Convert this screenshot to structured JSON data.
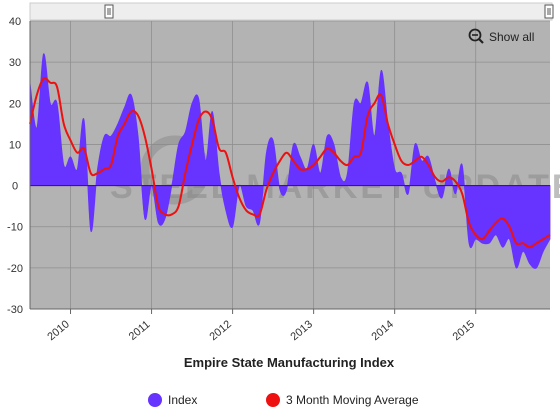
{
  "colors": {
    "plot_background": "#b3b3b3",
    "index_fill": "#6633ff",
    "moving_average": "#ee1111",
    "zero_line": "#5500aa"
  },
  "controls": {
    "show_all_label": "Show all",
    "zoom_icon": "zoom-out-icon"
  },
  "watermark": {
    "text": "STEEL MARKET UPDATE"
  },
  "chart_data": {
    "type": "area",
    "title": "Empire State Manufacturing Index",
    "xlabel": "",
    "ylabel": "",
    "ylim": [
      -30,
      40
    ],
    "y_ticks": [
      40,
      30,
      20,
      10,
      0,
      -10,
      -20,
      -30
    ],
    "x_ticks": [
      "2010",
      "2011",
      "2012",
      "2013",
      "2014",
      "2015"
    ],
    "x_range": [
      "2009-07",
      "2015-12"
    ],
    "grid": true,
    "legend_placement": "bottom",
    "series": [
      {
        "name": "Index",
        "kind": "area",
        "x": [
          "2009-07",
          "2009-08",
          "2009-09",
          "2009-10",
          "2009-11",
          "2009-12",
          "2010-01",
          "2010-02",
          "2010-03",
          "2010-04",
          "2010-05",
          "2010-06",
          "2010-07",
          "2010-08",
          "2010-09",
          "2010-10",
          "2010-11",
          "2010-12",
          "2011-01",
          "2011-02",
          "2011-03",
          "2011-04",
          "2011-05",
          "2011-06",
          "2011-07",
          "2011-08",
          "2011-09",
          "2011-10",
          "2011-11",
          "2011-12",
          "2012-01",
          "2012-02",
          "2012-03",
          "2012-04",
          "2012-05",
          "2012-06",
          "2012-07",
          "2012-08",
          "2012-09",
          "2012-10",
          "2012-11",
          "2012-12",
          "2013-01",
          "2013-02",
          "2013-03",
          "2013-04",
          "2013-05",
          "2013-06",
          "2013-07",
          "2013-08",
          "2013-09",
          "2013-10",
          "2013-11",
          "2013-12",
          "2014-01",
          "2014-02",
          "2014-03",
          "2014-04",
          "2014-05",
          "2014-06",
          "2014-07",
          "2014-08",
          "2014-09",
          "2014-10",
          "2014-11",
          "2014-12",
          "2015-01",
          "2015-02",
          "2015-03",
          "2015-04",
          "2015-05",
          "2015-06",
          "2015-07",
          "2015-08",
          "2015-09",
          "2015-10",
          "2015-11",
          "2015-12"
        ],
        "values": [
          25,
          14,
          32,
          20,
          20,
          5,
          7,
          4,
          16,
          -11,
          4,
          12,
          12,
          15,
          19,
          22,
          12,
          -8,
          0,
          -9,
          -8,
          0,
          10,
          13,
          20,
          21,
          6,
          18,
          3,
          -6,
          -10,
          0,
          -5,
          -6,
          -9,
          8,
          11,
          -1,
          -1,
          10,
          7,
          4,
          10,
          3,
          12,
          10,
          2,
          3,
          20,
          20,
          25,
          12,
          28,
          15,
          4,
          3,
          -2,
          10,
          6,
          7,
          1,
          -3,
          4,
          -2,
          5,
          -14,
          -13,
          -14,
          -14,
          -12,
          -15,
          -13,
          -20,
          -16,
          -19,
          -20,
          -16,
          -13
        ]
      },
      {
        "name": "3 Month Moving Average",
        "kind": "line",
        "x": [
          "2009-07",
          "2009-08",
          "2009-09",
          "2009-10",
          "2009-11",
          "2009-12",
          "2010-01",
          "2010-02",
          "2010-03",
          "2010-04",
          "2010-05",
          "2010-06",
          "2010-07",
          "2010-08",
          "2010-09",
          "2010-10",
          "2010-11",
          "2010-12",
          "2011-01",
          "2011-02",
          "2011-03",
          "2011-04",
          "2011-05",
          "2011-06",
          "2011-07",
          "2011-08",
          "2011-09",
          "2011-10",
          "2011-11",
          "2011-12",
          "2012-01",
          "2012-02",
          "2012-03",
          "2012-04",
          "2012-05",
          "2012-06",
          "2012-07",
          "2012-08",
          "2012-09",
          "2012-10",
          "2012-11",
          "2012-12",
          "2013-01",
          "2013-02",
          "2013-03",
          "2013-04",
          "2013-05",
          "2013-06",
          "2013-07",
          "2013-08",
          "2013-09",
          "2013-10",
          "2013-11",
          "2013-12",
          "2014-01",
          "2014-02",
          "2014-03",
          "2014-04",
          "2014-05",
          "2014-06",
          "2014-07",
          "2014-08",
          "2014-09",
          "2014-10",
          "2014-11",
          "2014-12",
          "2015-01",
          "2015-02",
          "2015-03",
          "2015-04",
          "2015-05",
          "2015-06",
          "2015-07",
          "2015-08",
          "2015-09",
          "2015-10",
          "2015-11",
          "2015-12"
        ],
        "values": [
          15,
          22,
          26,
          25,
          24,
          15,
          11,
          8,
          9,
          3,
          3,
          4,
          5,
          12,
          15,
          18,
          17,
          12,
          4,
          -5,
          -7,
          -7,
          -5,
          3,
          10,
          16,
          18,
          16,
          9,
          8,
          2,
          -3,
          -6,
          -7,
          -7,
          -1,
          3,
          6,
          8,
          6,
          4,
          4,
          5,
          7,
          9,
          8,
          6,
          5,
          7,
          8,
          17,
          20,
          22,
          15,
          10,
          6,
          5,
          6,
          7,
          5,
          2,
          1,
          2,
          1,
          -2,
          -9,
          -12,
          -13,
          -11,
          -9,
          -8,
          -10,
          -14,
          -14,
          -15,
          -14,
          -13,
          -12
        ]
      }
    ]
  }
}
